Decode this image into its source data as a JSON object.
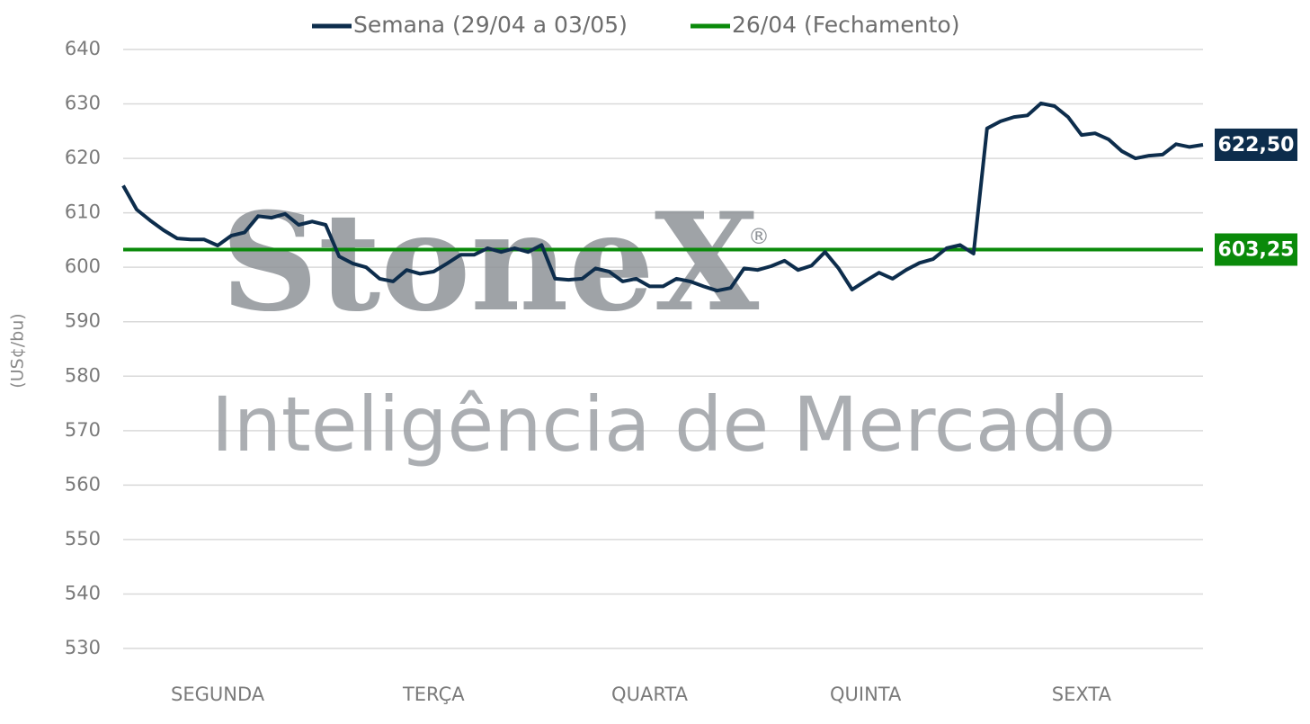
{
  "chart_data": {
    "type": "line",
    "categories": [
      null,
      null,
      null,
      null,
      null,
      null,
      null,
      null,
      "SEGUNDA",
      null,
      null,
      null,
      null,
      null,
      null,
      null,
      null,
      null,
      null,
      null,
      null,
      null,
      null,
      null,
      "TERÇA",
      null,
      null,
      null,
      null,
      null,
      null,
      null,
      null,
      null,
      null,
      null,
      null,
      null,
      null,
      null,
      "QUARTA",
      null,
      null,
      null,
      null,
      null,
      null,
      null,
      null,
      null,
      null,
      null,
      null,
      null,
      null,
      null,
      "QUINTA",
      null,
      null,
      null,
      null,
      null,
      null,
      null,
      null,
      null,
      null,
      null,
      null,
      null,
      null,
      null,
      "SEXTA",
      null,
      null,
      null,
      null,
      null,
      null,
      null,
      null
    ],
    "series": [
      {
        "name": "Semana (29/04 a 03/05)",
        "color": "#0d2d4c",
        "values": [
          615,
          610.6,
          608.6,
          606.8,
          605.3,
          605.1,
          605.1,
          604,
          605.8,
          606.4,
          609.4,
          609.1,
          609.8,
          607.8,
          608.4,
          607.8,
          602,
          600.7,
          600,
          597.9,
          597.4,
          599.5,
          598.8,
          599.2,
          600.7,
          602.3,
          602.3,
          603.5,
          602.8,
          603.5,
          602.8,
          604.1,
          597.9,
          597.7,
          597.9,
          599.8,
          599.2,
          597.4,
          597.9,
          596.5,
          596.5,
          597.9,
          597.4,
          596.5,
          595.7,
          596.2,
          599.8,
          599.5,
          600.2,
          601.2,
          599.5,
          600.3,
          602.8,
          599.8,
          595.9,
          597.5,
          599,
          597.9,
          599.5,
          600.8,
          601.5,
          603.5,
          604.1,
          602.5,
          625.5,
          626.8,
          627.6,
          627.9,
          630.1,
          629.6,
          627.6,
          624.3,
          624.6,
          623.5,
          621.3,
          620,
          620.5,
          620.7,
          622.6,
          622.1,
          622.5
        ],
        "last_value_label": "622,50"
      }
    ],
    "hlines": [
      {
        "name": "26/04 (Fechamento)",
        "color": "#0a8a0a",
        "value": 603.25,
        "label": "603,25"
      }
    ],
    "ylabel": "(US¢/bu)",
    "ylim": [
      530,
      640
    ],
    "yticks": [
      530,
      540,
      550,
      560,
      570,
      580,
      590,
      600,
      610,
      620,
      630,
      640
    ],
    "grid": true,
    "legend": "top",
    "watermark": {
      "logo": "StoneX",
      "mark": "®",
      "tagline": "Inteligência de Mercado"
    }
  }
}
